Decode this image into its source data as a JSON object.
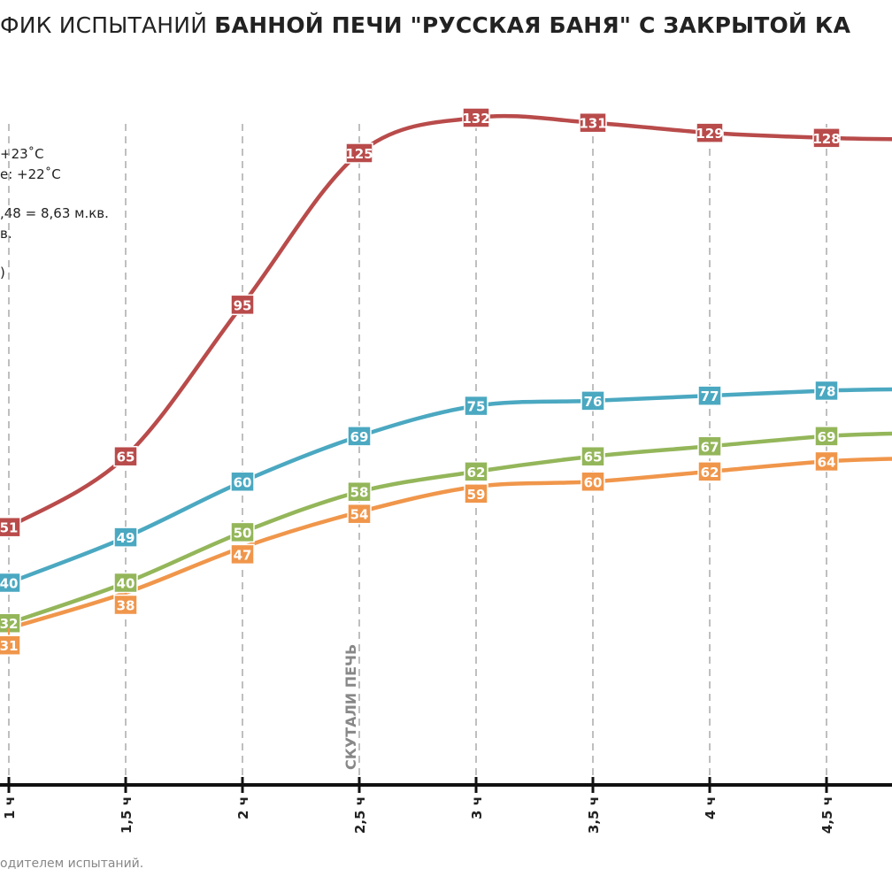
{
  "title": {
    "regular": "ФИК ИСПЫТАНИЙ ",
    "bold": "БАННОЙ ПЕЧИ \"РУССКАЯ БАНЯ\" С ЗАКРЫТОЙ КА"
  },
  "notes": [
    "+23˚С",
    "e: +22˚С",
    "",
    ",48 = 8,63 м.кв.",
    "в.",
    "",
    ")"
  ],
  "footer": "одителем испытаний.",
  "chart_data": {
    "type": "line",
    "categories": [
      "1 ч",
      "1,5 ч",
      "2 ч",
      "2,5 ч",
      "3 ч",
      "3,5 ч",
      "4 ч",
      "4,5 ч"
    ],
    "ylim": [
      0,
      132
    ],
    "grid": "vertical dashed",
    "annotation": {
      "text": "СКУТАЛИ ПЕЧЬ",
      "at": "2,5 ч"
    },
    "series": [
      {
        "color": "#b94b4b",
        "values": [
          51,
          65,
          95,
          125,
          132,
          131,
          129,
          128
        ]
      },
      {
        "color": "#4ba8c1",
        "values": [
          40,
          49,
          60,
          69,
          75,
          76,
          77,
          78
        ]
      },
      {
        "color": "#94b65a",
        "values": [
          32,
          40,
          50,
          58,
          62,
          65,
          67,
          69
        ]
      },
      {
        "color": "#f0964b",
        "values": [
          31,
          38,
          47,
          54,
          59,
          60,
          62,
          64
        ]
      }
    ]
  }
}
